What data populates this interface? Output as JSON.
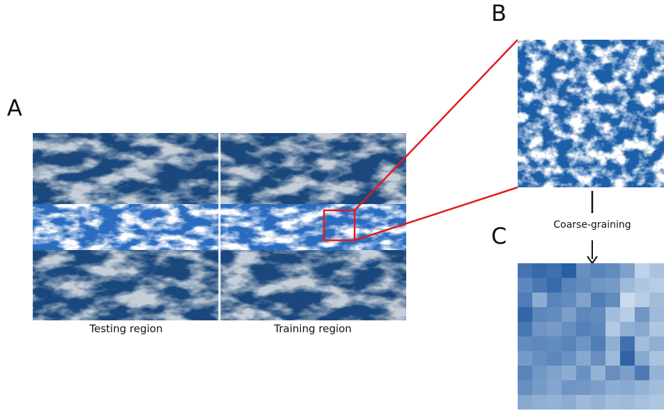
{
  "panels": {
    "a": "A",
    "b": "B",
    "c": "C"
  },
  "captions": {
    "testing": "Testing region",
    "training": "Training region",
    "arrow": "Coarse-graining"
  },
  "colors": {
    "ocean": "#1f4f86",
    "tropics": "#2a6cc0",
    "cloud": "#d9dee2",
    "highlight": "#e41a1c",
    "divider": "#ffffff"
  },
  "coarse_grid": [
    [
      0.72,
      0.78,
      0.74,
      0.85,
      0.55,
      0.62,
      0.58,
      0.45,
      0.15,
      0.25
    ],
    [
      0.6,
      0.7,
      0.78,
      0.62,
      0.58,
      0.52,
      0.48,
      0.3,
      0.22,
      0.18
    ],
    [
      0.66,
      0.38,
      0.62,
      0.58,
      0.44,
      0.66,
      0.58,
      0.1,
      0.18,
      0.28
    ],
    [
      0.8,
      0.6,
      0.58,
      0.46,
      0.6,
      0.58,
      0.28,
      0.18,
      0.52,
      0.3
    ],
    [
      0.7,
      0.52,
      0.48,
      0.56,
      0.64,
      0.6,
      0.2,
      0.36,
      0.4,
      0.22
    ],
    [
      0.58,
      0.6,
      0.58,
      0.62,
      0.52,
      0.66,
      0.36,
      0.74,
      0.28,
      0.36
    ],
    [
      0.48,
      0.56,
      0.6,
      0.54,
      0.4,
      0.56,
      0.3,
      0.82,
      0.4,
      0.25
    ],
    [
      0.62,
      0.5,
      0.44,
      0.38,
      0.54,
      0.34,
      0.56,
      0.46,
      0.68,
      0.34
    ],
    [
      0.56,
      0.48,
      0.42,
      0.52,
      0.5,
      0.46,
      0.38,
      0.4,
      0.34,
      0.28
    ],
    [
      0.4,
      0.36,
      0.34,
      0.38,
      0.3,
      0.34,
      0.28,
      0.3,
      0.26,
      0.22
    ]
  ]
}
